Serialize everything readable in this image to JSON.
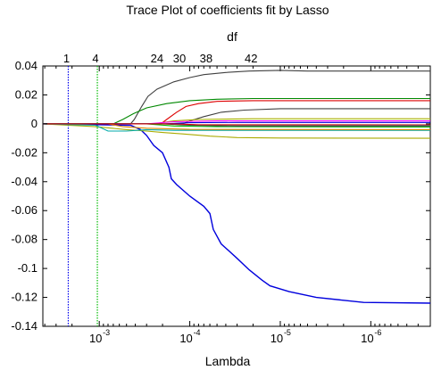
{
  "chart_data": {
    "type": "line",
    "title": "Trace Plot of coefficients fit by Lasso",
    "top_axis_label": "df",
    "xlabel": "Lambda",
    "ylabel": "",
    "x_scale": "log",
    "x_reversed": true,
    "xlim": [
      0.0042,
      2.2e-07
    ],
    "ylim": [
      -0.14,
      0.04
    ],
    "x_ticks": [
      {
        "base": "10",
        "exp": "-3",
        "value": 0.001
      },
      {
        "base": "10",
        "exp": "-4",
        "value": 0.0001
      },
      {
        "base": "10",
        "exp": "-5",
        "value": 1e-05
      },
      {
        "base": "10",
        "exp": "-6",
        "value": 1e-06
      }
    ],
    "y_ticks": [
      "0.04",
      "0.02",
      "0",
      "-0.02",
      "-0.04",
      "-0.06",
      "-0.08",
      "-0.1",
      "-0.12",
      "-0.14"
    ],
    "y_tick_values": [
      0.04,
      0.02,
      0,
      -0.02,
      -0.04,
      -0.06,
      -0.08,
      -0.1,
      -0.12,
      -0.14
    ],
    "df_labels": [
      {
        "text": "1",
        "lambda": 0.0023
      },
      {
        "text": "4",
        "lambda": 0.0011
      },
      {
        "text": "24",
        "lambda": 0.00023
      },
      {
        "text": "30",
        "lambda": 0.00013
      },
      {
        "text": "38",
        "lambda": 6.6e-05
      },
      {
        "text": "42",
        "lambda": 2.1e-05
      }
    ],
    "vlines": [
      {
        "lambda": 0.0022,
        "color": "#0000ee",
        "style": "dotted"
      },
      {
        "lambda": 0.00105,
        "color": "#00bb00",
        "style": "dotted"
      }
    ],
    "series": [
      {
        "color": "#0000dd",
        "points": [
          [
            0.0042,
            0
          ],
          [
            0.00045,
            -0.001
          ],
          [
            0.00035,
            -0.004
          ],
          [
            0.0003,
            -0.008
          ],
          [
            0.00025,
            -0.015
          ],
          [
            0.0002,
            -0.02
          ],
          [
            0.00017,
            -0.03
          ],
          [
            0.00016,
            -0.038
          ],
          [
            0.00014,
            -0.042
          ],
          [
            0.0001,
            -0.05
          ],
          [
            7e-05,
            -0.057
          ],
          [
            6e-05,
            -0.062
          ],
          [
            5.5e-05,
            -0.073
          ],
          [
            4.5e-05,
            -0.083
          ],
          [
            3e-05,
            -0.093
          ],
          [
            2.2e-05,
            -0.101
          ],
          [
            1.6e-05,
            -0.108
          ],
          [
            1.3e-05,
            -0.112
          ],
          [
            8e-06,
            -0.116
          ],
          [
            4e-06,
            -0.12
          ],
          [
            2e-06,
            -0.122
          ],
          [
            1.2e-06,
            -0.1235
          ],
          [
            2.2e-07,
            -0.124
          ]
        ]
      },
      {
        "color": "#404040",
        "points": [
          [
            0.0042,
            0
          ],
          [
            0.00045,
            0
          ],
          [
            0.00041,
            0.003
          ],
          [
            0.00034,
            0.012
          ],
          [
            0.00029,
            0.019
          ],
          [
            0.00023,
            0.024
          ],
          [
            0.00015,
            0.029
          ],
          [
            0.0001,
            0.032
          ],
          [
            7e-05,
            0.034
          ],
          [
            4e-05,
            0.0355
          ],
          [
            2.2e-05,
            0.0365
          ],
          [
            1e-05,
            0.037
          ],
          [
            5e-06,
            0.0365
          ],
          [
            2.2e-07,
            0.0365
          ]
        ]
      },
      {
        "color": "#008800",
        "points": [
          [
            0.0042,
            0
          ],
          [
            0.0007,
            0
          ],
          [
            0.00055,
            0.003
          ],
          [
            0.00042,
            0.007
          ],
          [
            0.0003,
            0.011
          ],
          [
            0.00018,
            0.014
          ],
          [
            0.0001,
            0.016
          ],
          [
            5e-05,
            0.017
          ],
          [
            2e-05,
            0.0175
          ],
          [
            2.2e-07,
            0.0175
          ]
        ]
      },
      {
        "color": "#dd0000",
        "points": [
          [
            0.0042,
            0
          ],
          [
            0.00021,
            0
          ],
          [
            0.00018,
            0.003
          ],
          [
            0.00014,
            0.008
          ],
          [
            0.00011,
            0.012
          ],
          [
            8e-05,
            0.014
          ],
          [
            5e-05,
            0.0155
          ],
          [
            2e-05,
            0.016
          ],
          [
            2.2e-07,
            0.016
          ]
        ]
      },
      {
        "color": "#404040",
        "points": [
          [
            0.0042,
            0
          ],
          [
            0.00012,
            0
          ],
          [
            0.0001,
            0.002
          ],
          [
            7e-05,
            0.005
          ],
          [
            4.5e-05,
            0.008
          ],
          [
            2.5e-05,
            0.0095
          ],
          [
            1e-05,
            0.0105
          ],
          [
            2.2e-07,
            0.0105
          ]
        ]
      },
      {
        "color": "#aaaa00",
        "points": [
          [
            0.0042,
            0
          ],
          [
            0.0011,
            -0.002
          ],
          [
            0.0005,
            -0.004
          ],
          [
            0.0003,
            -0.005
          ],
          [
            0.0002,
            -0.006
          ],
          [
            0.00012,
            -0.007
          ],
          [
            6e-05,
            -0.0085
          ],
          [
            3e-05,
            -0.0095
          ],
          [
            1e-05,
            -0.0098
          ],
          [
            2.2e-07,
            -0.01
          ]
        ]
      },
      {
        "color": "#00aaaa",
        "points": [
          [
            0.0042,
            0
          ],
          [
            0.0011,
            -0.001
          ],
          [
            0.0008,
            -0.005
          ],
          [
            0.0005,
            -0.005
          ],
          [
            0.0003,
            -0.004
          ],
          [
            0.00015,
            -0.0045
          ],
          [
            5e-05,
            -0.0045
          ],
          [
            2.2e-07,
            -0.0045
          ]
        ]
      },
      {
        "color": "#dd8800",
        "points": [
          [
            0.0042,
            0
          ],
          [
            0.0008,
            0
          ],
          [
            0.00055,
            -0.002
          ],
          [
            0.0003,
            -0.003
          ],
          [
            0.0001,
            -0.0038
          ],
          [
            2.2e-07,
            -0.004
          ]
        ]
      },
      {
        "color": "#aaaa00",
        "points": [
          [
            0.0042,
            0
          ],
          [
            0.00025,
            0
          ],
          [
            0.00015,
            0.002
          ],
          [
            8e-05,
            0.003
          ],
          [
            2e-05,
            0.0035
          ],
          [
            2.2e-07,
            0.0035
          ]
        ]
      },
      {
        "color": "#ff00ff",
        "points": [
          [
            0.0042,
            0
          ],
          [
            0.0003,
            0
          ],
          [
            0.00015,
            0.0015
          ],
          [
            5e-05,
            0.002
          ],
          [
            2.2e-07,
            0.002
          ]
        ]
      },
      {
        "color": "#00bb00",
        "points": [
          [
            0.0042,
            0
          ],
          [
            0.0003,
            0
          ],
          [
            0.00015,
            -0.0015
          ],
          [
            5e-05,
            -0.002
          ],
          [
            2.2e-07,
            -0.0022
          ]
        ]
      },
      {
        "color": "#404040",
        "points": [
          [
            0.0042,
            0
          ],
          [
            0.0002,
            0
          ],
          [
            0.0001,
            -0.001
          ],
          [
            3e-05,
            -0.0015
          ],
          [
            2.2e-07,
            -0.0015
          ]
        ]
      },
      {
        "color": "#0000dd",
        "points": [
          [
            0.0042,
            0
          ],
          [
            0.0002,
            0
          ],
          [
            0.0001,
            0.0008
          ],
          [
            3e-05,
            0.001
          ],
          [
            2.2e-07,
            0.001
          ]
        ]
      },
      {
        "color": "#00aaaa",
        "points": [
          [
            0.0042,
            0
          ],
          [
            0.00015,
            0
          ],
          [
            8e-05,
            -0.0008
          ],
          [
            2.2e-07,
            -0.001
          ]
        ]
      },
      {
        "color": "#dd0000",
        "points": [
          [
            0.0042,
            0
          ],
          [
            0.00015,
            0
          ],
          [
            8e-05,
            -0.0006
          ],
          [
            2.2e-07,
            -0.0007
          ]
        ]
      }
    ]
  }
}
